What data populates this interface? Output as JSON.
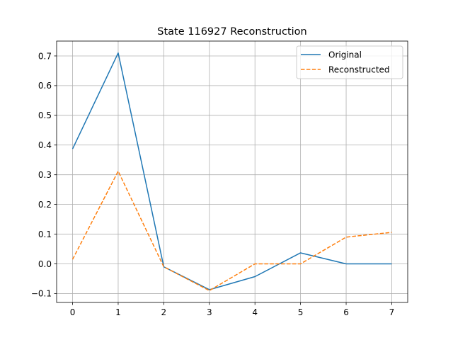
{
  "chart_data": {
    "type": "line",
    "title": "State 116927 Reconstruction",
    "xlabel": "",
    "ylabel": "",
    "x": [
      0,
      1,
      2,
      3,
      4,
      5,
      6,
      7
    ],
    "xticks": [
      "0",
      "1",
      "2",
      "3",
      "4",
      "5",
      "6",
      "7"
    ],
    "yticks": [
      "−0.1",
      "0.0",
      "0.1",
      "0.2",
      "0.3",
      "0.4",
      "0.5",
      "0.6",
      "0.7"
    ],
    "ytick_values": [
      -0.1,
      0.0,
      0.1,
      0.2,
      0.3,
      0.4,
      0.5,
      0.6,
      0.7
    ],
    "xlim": [
      -0.35,
      7.35
    ],
    "ylim": [
      -0.13,
      0.75
    ],
    "grid": true,
    "legend_position": "top-right",
    "series": [
      {
        "name": "Original",
        "values": [
          0.387,
          0.71,
          -0.01,
          -0.087,
          -0.043,
          0.037,
          0.0,
          0.0
        ],
        "color": "#1f77b4",
        "style": "solid"
      },
      {
        "name": "Reconstructed",
        "values": [
          0.015,
          0.312,
          -0.01,
          -0.09,
          0.0,
          0.0,
          0.09,
          0.106
        ],
        "color": "#ff7f0e",
        "style": "dashed"
      }
    ]
  }
}
